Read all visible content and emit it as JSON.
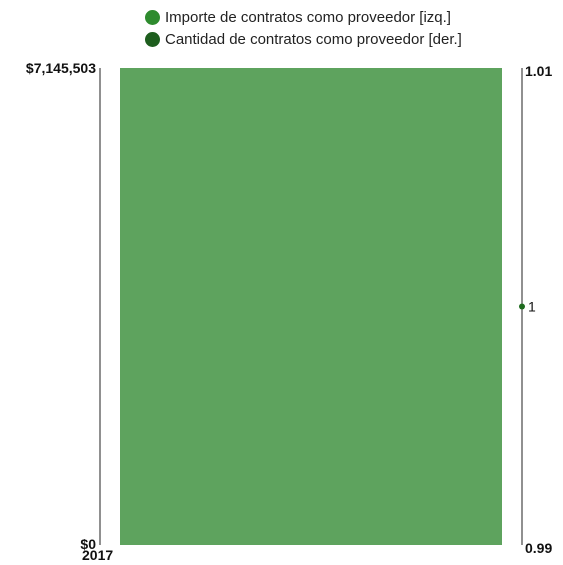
{
  "chart_data": {
    "type": "bar",
    "categories": [
      "2017"
    ],
    "series": [
      {
        "name": "Importe de contratos como proveedor [izq.]",
        "axis": "left",
        "kind": "bar",
        "color": "#5ea35e",
        "values": [
          7145503
        ]
      },
      {
        "name": "Cantidad de contratos como proveedor [der.]",
        "axis": "right",
        "kind": "point",
        "color": "#1e6b1e",
        "values": [
          1
        ]
      }
    ],
    "left_axis": {
      "ylim": [
        0,
        7145503
      ],
      "tick_labels": [
        "$0",
        "$7,145,503"
      ]
    },
    "right_axis": {
      "ylim": [
        0.99,
        1.01
      ],
      "tick_labels": [
        "0.99",
        "1.01"
      ]
    },
    "point_label": "1",
    "legend_placement": "top-center",
    "grid": false
  },
  "legend": {
    "items": [
      {
        "label": "Importe de contratos como proveedor [izq.]",
        "color": "#2e8b2e"
      },
      {
        "label": "Cantidad de contratos como proveedor [der.]",
        "color": "#1e5e1e"
      }
    ]
  }
}
